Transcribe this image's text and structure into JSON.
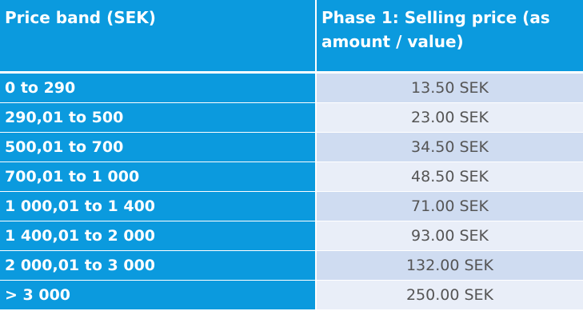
{
  "table": {
    "headers": {
      "price_band": "Price band (SEK)",
      "phase1": "Phase 1: Selling price (as amount / value)"
    },
    "rows": [
      {
        "band": "0 to 290",
        "price": "13.50 SEK"
      },
      {
        "band": "290,01 to 500",
        "price": "23.00 SEK"
      },
      {
        "band": "500,01 to 700",
        "price": "34.50 SEK"
      },
      {
        "band": "700,01 to 1 000",
        "price": "48.50 SEK"
      },
      {
        "band": "1 000,01 to 1 400",
        "price": "71.00 SEK"
      },
      {
        "band": "1 400,01 to 2 000",
        "price": "93.00 SEK"
      },
      {
        "band": "2 000,01 to 3 000",
        "price": "132.00 SEK"
      },
      {
        "band": "> 3 000",
        "price": "250.00 SEK"
      }
    ]
  },
  "colors": {
    "header_blue": "#0b9ade",
    "row_light_1": "#cfdcf1",
    "row_light_2": "#e9eef8",
    "value_text": "#555555"
  }
}
